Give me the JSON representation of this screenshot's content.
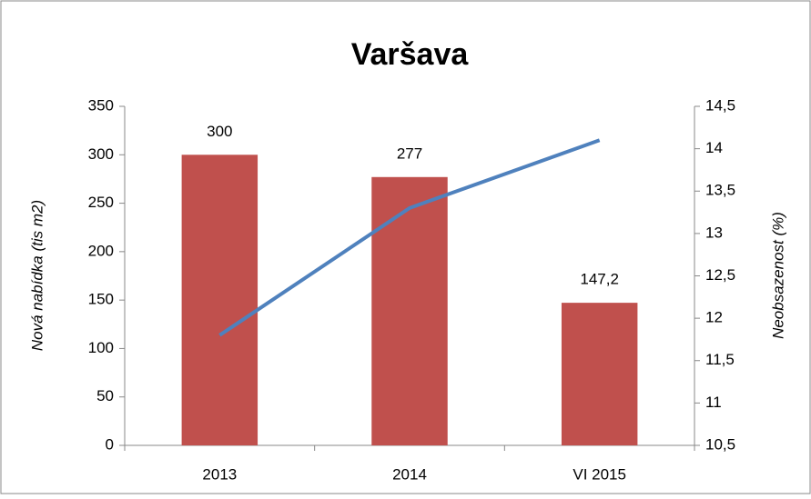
{
  "chart_data": {
    "type": "bar",
    "title": "Varšava",
    "categories": [
      "2013",
      "2014",
      "VI 2015"
    ],
    "ylabel": "Nová nabídka (tis m2)",
    "y2label": "Neobsazenost (%)",
    "series": [
      {
        "name": "Nová nabídka",
        "type": "bar",
        "color": "#c0504d",
        "values": [
          300,
          277,
          147.2
        ],
        "value_labels": [
          "300",
          "277",
          "147,2"
        ]
      },
      {
        "name": "Neobsazenost",
        "type": "line",
        "axis": "y2",
        "color": "#4f81bd",
        "values": [
          11.8,
          13.3,
          14.1
        ]
      }
    ],
    "ylim": [
      0,
      350
    ],
    "yticks": [
      0,
      50,
      100,
      150,
      200,
      250,
      300,
      350
    ],
    "y2lim": [
      10.5,
      14.5
    ],
    "y2ticks": [
      {
        "value": 10.5,
        "label": "10,5"
      },
      11,
      {
        "value": 11.5,
        "label": "11,5"
      },
      12,
      {
        "value": 12.5,
        "label": "12,5"
      },
      13,
      {
        "value": 13.5,
        "label": "13,5"
      },
      14,
      {
        "value": 14.5,
        "label": "14,5"
      }
    ],
    "grid": false,
    "legend": false
  }
}
